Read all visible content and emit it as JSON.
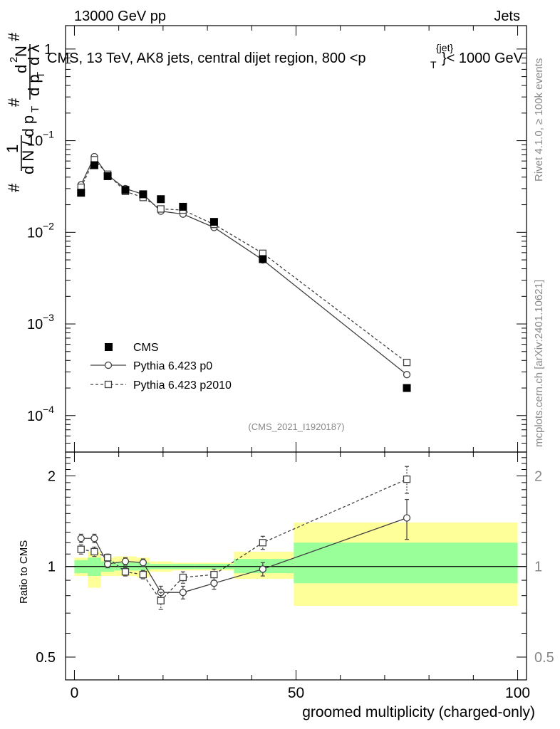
{
  "header": {
    "left": "13000 GeV pp",
    "right": "Jets"
  },
  "title": "CMS, 13 TeV, AK8 jets, central dijet region, 800 <p",
  "title_sup": "{jet}",
  "title_sub": "T",
  "title_end": "}< 1000 GeV",
  "ylabel_parts": [
    "#",
    "1",
    "d N / d p",
    "T",
    "#",
    "d p",
    "T",
    "d",
    "2",
    "N",
    "d λ",
    "#"
  ],
  "side_labels": {
    "rivet": "Rivet 4.1.0, ≥ 100k events",
    "mcplots": "mcplots.cern.ch [arXiv:2401.10621]"
  },
  "analysis_tag": "(CMS_2021_I1920187)",
  "legend": {
    "cms": "CMS",
    "p0": "Pythia 6.423 p0",
    "p2010": "Pythia 6.423 p2010"
  },
  "ratio_ylabel": "Ratio to CMS",
  "xlabel": "groomed multiplicity (charged-only)",
  "colors": {
    "band_inner": "#99ff99",
    "band_outer": "#ffff99",
    "line": "#404040",
    "data": "#000000"
  },
  "chart_data": {
    "type": "scatter",
    "xlim": [
      -2,
      102
    ],
    "xticks": [
      0,
      50,
      100
    ],
    "main": {
      "yscale": "log",
      "ylim": [
        4e-05,
        1.8
      ],
      "yticks": [
        {
          "v": 1,
          "base": "1",
          "exp": ""
        },
        {
          "v": 0.1,
          "base": "10",
          "exp": "−1"
        },
        {
          "v": 0.01,
          "base": "10",
          "exp": "−2"
        },
        {
          "v": 0.001,
          "base": "10",
          "exp": "−3"
        },
        {
          "v": 0.0001,
          "base": "10",
          "exp": "−4"
        }
      ]
    },
    "ratio": {
      "yscale": "log",
      "ylim": [
        0.42,
        2.4
      ],
      "yticks": [
        {
          "v": 0.5,
          "label": "0.5"
        },
        {
          "v": 1,
          "label": "1"
        },
        {
          "v": 2,
          "label": "2"
        }
      ]
    },
    "cms": {
      "x": [
        1.5,
        4.5,
        7.5,
        11.5,
        15.5,
        19.5,
        24.5,
        31.5,
        42.5,
        75
      ],
      "y": [
        0.027,
        0.054,
        0.041,
        0.029,
        0.026,
        0.023,
        0.019,
        0.013,
        0.0051,
        0.0002
      ],
      "band_edges": [
        0,
        3,
        6,
        9,
        14,
        17,
        22,
        27,
        36,
        49.5,
        100
      ],
      "band_inner": [
        [
          0.95,
          1.05
        ],
        [
          0.93,
          1.07
        ],
        [
          0.96,
          1.04
        ],
        [
          0.97,
          1.03
        ],
        [
          0.97,
          1.03
        ],
        [
          0.98,
          1.02
        ],
        [
          0.98,
          1.02
        ],
        [
          0.98,
          1.02
        ],
        [
          0.95,
          1.06
        ],
        [
          0.88,
          1.2
        ]
      ],
      "band_outer": [
        [
          0.93,
          1.07
        ],
        [
          0.85,
          1.12
        ],
        [
          0.93,
          1.07
        ],
        [
          0.93,
          1.08
        ],
        [
          0.92,
          1.07
        ],
        [
          0.96,
          1.04
        ],
        [
          0.97,
          1.03
        ],
        [
          0.97,
          1.03
        ],
        [
          0.91,
          1.12
        ],
        [
          0.74,
          1.4
        ]
      ]
    },
    "series": [
      {
        "name": "Pythia 6.423 p0",
        "marker": "circle",
        "dash": false,
        "x": [
          1.5,
          4.5,
          7.5,
          11.5,
          15.5,
          19.5,
          24.5,
          31.5,
          42.5,
          75
        ],
        "y": [
          0.033,
          0.067,
          0.042,
          0.03,
          0.026,
          0.017,
          0.0158,
          0.0113,
          0.005,
          0.00028
        ],
        "ratio": [
          1.24,
          1.24,
          1.02,
          1.04,
          1.03,
          0.82,
          0.82,
          0.88,
          0.98,
          1.45
        ],
        "ratio_err": [
          0.04,
          0.04,
          0.03,
          0.03,
          0.03,
          0.04,
          0.04,
          0.04,
          0.05,
          0.22
        ]
      },
      {
        "name": "Pythia 6.423 p2010",
        "marker": "square",
        "dash": true,
        "x": [
          1.5,
          4.5,
          7.5,
          11.5,
          15.5,
          19.5,
          24.5,
          31.5,
          42.5,
          75
        ],
        "y": [
          0.031,
          0.062,
          0.043,
          0.028,
          0.024,
          0.018,
          0.0175,
          0.0122,
          0.0059,
          0.00038
        ],
        "ratio": [
          1.14,
          1.12,
          1.07,
          0.96,
          0.94,
          0.77,
          0.92,
          0.94,
          1.2,
          1.95
        ],
        "ratio_err": [
          0.04,
          0.04,
          0.03,
          0.03,
          0.03,
          0.05,
          0.04,
          0.04,
          0.06,
          0.2
        ]
      }
    ]
  }
}
